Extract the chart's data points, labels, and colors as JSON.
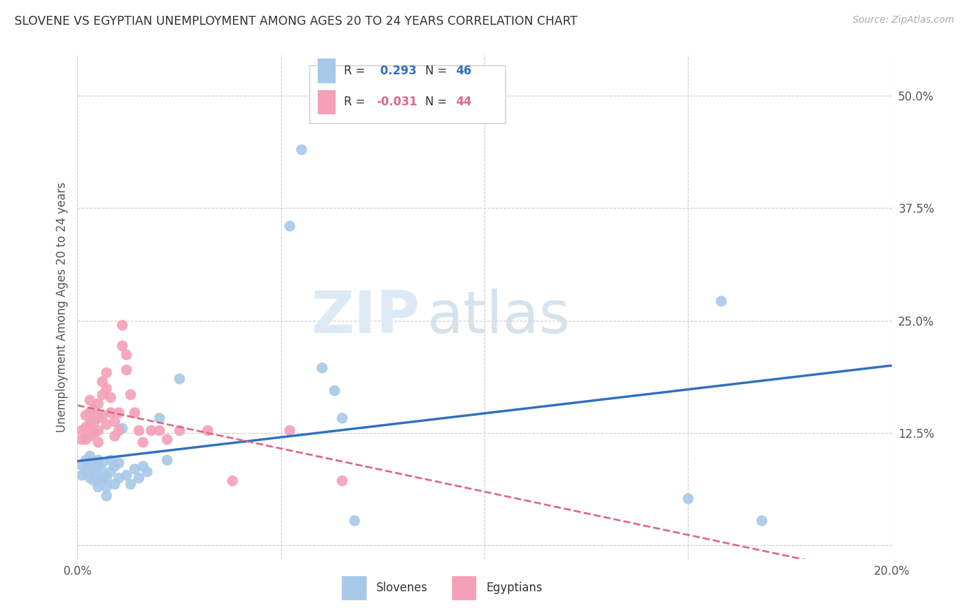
{
  "title": "SLOVENE VS EGYPTIAN UNEMPLOYMENT AMONG AGES 20 TO 24 YEARS CORRELATION CHART",
  "source": "Source: ZipAtlas.com",
  "ylabel": "Unemployment Among Ages 20 to 24 years",
  "xlim": [
    0.0,
    0.2
  ],
  "ylim": [
    -0.015,
    0.545
  ],
  "xticks": [
    0.0,
    0.05,
    0.1,
    0.15,
    0.2
  ],
  "yticks": [
    0.0,
    0.125,
    0.25,
    0.375,
    0.5
  ],
  "slovene_R": 0.293,
  "slovene_N": 46,
  "egyptian_R": -0.031,
  "egyptian_N": 44,
  "slovene_color": "#a8c8e8",
  "egyptian_color": "#f4a0b8",
  "slovene_line_color": "#3070c0",
  "egyptian_line_color": "#e06888",
  "background_color": "#ffffff",
  "grid_color": "#cccccc",
  "slovene_x": [
    0.001,
    0.001,
    0.002,
    0.002,
    0.003,
    0.003,
    0.003,
    0.004,
    0.004,
    0.004,
    0.004,
    0.005,
    0.005,
    0.005,
    0.005,
    0.006,
    0.006,
    0.006,
    0.007,
    0.007,
    0.007,
    0.008,
    0.008,
    0.009,
    0.009,
    0.01,
    0.01,
    0.011,
    0.012,
    0.013,
    0.014,
    0.015,
    0.016,
    0.017,
    0.02,
    0.022,
    0.025,
    0.052,
    0.055,
    0.06,
    0.063,
    0.065,
    0.068,
    0.15,
    0.158,
    0.168
  ],
  "slovene_y": [
    0.09,
    0.078,
    0.095,
    0.082,
    0.088,
    0.1,
    0.075,
    0.085,
    0.092,
    0.072,
    0.078,
    0.088,
    0.095,
    0.072,
    0.065,
    0.082,
    0.092,
    0.075,
    0.075,
    0.065,
    0.055,
    0.095,
    0.082,
    0.088,
    0.068,
    0.092,
    0.075,
    0.13,
    0.078,
    0.068,
    0.085,
    0.075,
    0.088,
    0.082,
    0.142,
    0.095,
    0.185,
    0.355,
    0.44,
    0.198,
    0.172,
    0.142,
    0.028,
    0.052,
    0.272,
    0.028
  ],
  "egyptian_x": [
    0.001,
    0.001,
    0.002,
    0.002,
    0.002,
    0.003,
    0.003,
    0.003,
    0.003,
    0.004,
    0.004,
    0.004,
    0.005,
    0.005,
    0.005,
    0.005,
    0.006,
    0.006,
    0.006,
    0.007,
    0.007,
    0.007,
    0.008,
    0.008,
    0.009,
    0.009,
    0.01,
    0.01,
    0.011,
    0.011,
    0.012,
    0.012,
    0.013,
    0.014,
    0.015,
    0.016,
    0.018,
    0.02,
    0.022,
    0.025,
    0.032,
    0.038,
    0.052,
    0.065
  ],
  "egyptian_y": [
    0.128,
    0.118,
    0.132,
    0.118,
    0.145,
    0.122,
    0.135,
    0.148,
    0.162,
    0.125,
    0.138,
    0.152,
    0.128,
    0.115,
    0.142,
    0.158,
    0.168,
    0.182,
    0.145,
    0.135,
    0.175,
    0.192,
    0.148,
    0.165,
    0.122,
    0.138,
    0.148,
    0.128,
    0.245,
    0.222,
    0.212,
    0.195,
    0.168,
    0.148,
    0.128,
    0.115,
    0.128,
    0.128,
    0.118,
    0.128,
    0.128,
    0.072,
    0.128,
    0.072
  ]
}
